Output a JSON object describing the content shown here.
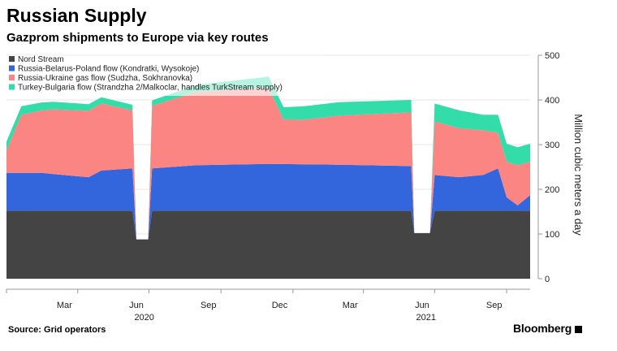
{
  "header": {
    "title": "Russian Supply",
    "subtitle": "Gazprom shipments to Europe via key routes"
  },
  "footer": {
    "source": "Source: Grid operators",
    "brand": "Bloomberg"
  },
  "chart_data": {
    "type": "area",
    "stacked": true,
    "x_axis": {
      "ticks": [
        "Mar",
        "Jun",
        "Sep",
        "Dec",
        "Mar",
        "Jun",
        "Sep"
      ],
      "years": [
        "2020",
        "2021"
      ]
    },
    "ylabel": "Million cubic meters a day",
    "ylim": [
      0,
      500
    ],
    "yticks": [
      0,
      100,
      200,
      300,
      400,
      500
    ],
    "y_axis_side": "right",
    "legend_position": "top-left",
    "x_start": "2020-01-01",
    "x_end": "2021-10-31",
    "series": [
      {
        "name": "Nord Stream",
        "color": "#444444",
        "points": [
          [
            "2020-01-01",
            152
          ],
          [
            "2020-06-10",
            152
          ],
          [
            "2020-06-15",
            88
          ],
          [
            "2020-06-30",
            88
          ],
          [
            "2020-07-05",
            152
          ],
          [
            "2021-06-01",
            152
          ],
          [
            "2021-06-05",
            102
          ],
          [
            "2021-06-25",
            102
          ],
          [
            "2021-07-01",
            152
          ],
          [
            "2021-10-31",
            152
          ]
        ]
      },
      {
        "name": "Russia-Belarus-Poland flow (Kondratki, Wysokoje)",
        "color": "#3366dd",
        "points": [
          [
            "2020-01-01",
            85
          ],
          [
            "2020-02-15",
            85
          ],
          [
            "2020-03-01",
            82
          ],
          [
            "2020-04-15",
            75
          ],
          [
            "2020-05-01",
            90
          ],
          [
            "2020-06-10",
            95
          ],
          [
            "2020-06-15",
            0
          ],
          [
            "2020-06-30",
            0
          ],
          [
            "2020-07-05",
            95
          ],
          [
            "2020-09-01",
            102
          ],
          [
            "2020-12-01",
            105
          ],
          [
            "2021-03-01",
            103
          ],
          [
            "2021-06-01",
            100
          ],
          [
            "2021-06-05",
            0
          ],
          [
            "2021-06-25",
            0
          ],
          [
            "2021-07-01",
            80
          ],
          [
            "2021-08-01",
            75
          ],
          [
            "2021-09-01",
            80
          ],
          [
            "2021-09-20",
            95
          ],
          [
            "2021-10-01",
            30
          ],
          [
            "2021-10-15",
            12
          ],
          [
            "2021-10-31",
            35
          ]
        ]
      },
      {
        "name": "Russia-Ukraine gas flow (Sudzha, Sokhranovka)",
        "color": "#fa8583",
        "points": [
          [
            "2020-01-01",
            50
          ],
          [
            "2020-01-20",
            130
          ],
          [
            "2020-03-01",
            145
          ],
          [
            "2020-05-01",
            150
          ],
          [
            "2020-06-10",
            130
          ],
          [
            "2020-06-15",
            0
          ],
          [
            "2020-06-30",
            0
          ],
          [
            "2020-07-05",
            140
          ],
          [
            "2020-09-01",
            165
          ],
          [
            "2020-12-01",
            170
          ],
          [
            "2020-12-20",
            100
          ],
          [
            "2021-01-15",
            100
          ],
          [
            "2021-03-01",
            110
          ],
          [
            "2021-06-01",
            120
          ],
          [
            "2021-06-05",
            0
          ],
          [
            "2021-06-25",
            0
          ],
          [
            "2021-07-01",
            120
          ],
          [
            "2021-08-01",
            110
          ],
          [
            "2021-09-01",
            100
          ],
          [
            "2021-09-20",
            80
          ],
          [
            "2021-10-01",
            80
          ],
          [
            "2021-10-15",
            90
          ],
          [
            "2021-10-31",
            75
          ]
        ]
      },
      {
        "name": "Turkey-Bulgaria flow (Strandzha 2/Malkoclar, handles TurkStream supply)",
        "color": "#33ddaa",
        "points": [
          [
            "2020-01-01",
            20
          ],
          [
            "2020-06-10",
            12
          ],
          [
            "2020-06-15",
            0
          ],
          [
            "2020-06-30",
            0
          ],
          [
            "2020-07-05",
            12
          ],
          [
            "2020-09-01",
            15
          ],
          [
            "2020-12-01",
            25
          ],
          [
            "2021-01-15",
            30
          ],
          [
            "2021-03-01",
            30
          ],
          [
            "2021-06-01",
            28
          ],
          [
            "2021-06-05",
            0
          ],
          [
            "2021-06-25",
            0
          ],
          [
            "2021-07-01",
            40
          ],
          [
            "2021-08-01",
            40
          ],
          [
            "2021-09-01",
            35
          ],
          [
            "2021-09-20",
            40
          ],
          [
            "2021-10-01",
            40
          ],
          [
            "2021-10-31",
            40
          ]
        ]
      }
    ]
  }
}
